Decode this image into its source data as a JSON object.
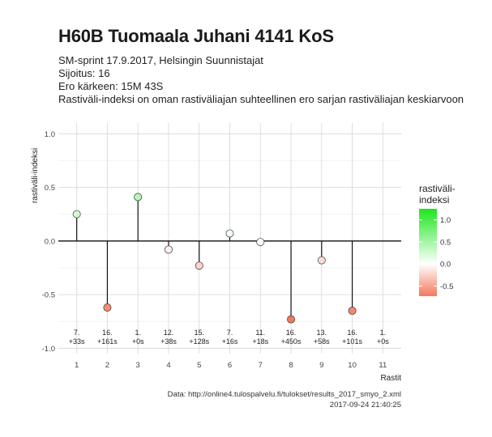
{
  "header": {
    "title": "H60B Tuomaala Juhani 4141 KoS",
    "subtitle_lines": [
      "SM-sprint 17.9.2017, Helsingin Suunnistajat",
      "Sijoitus: 16",
      "Ero kärkeen: 15M 43S",
      "Rastiväli-indeksi on oman rastiväliajan suhteellinen ero sarjan rastiväliajan keskiarvoon"
    ]
  },
  "footer": {
    "source": "Data: http://online4.tulospalvelu.fi/tulokset/results_2017_smyo_2.xml",
    "timestamp": "2017-09-24 21:40:25"
  },
  "chart_data": {
    "type": "scatter",
    "style": "lollipop",
    "xlabel": "Rastit",
    "ylabel": "rastiväli-indeksi",
    "x": [
      1,
      2,
      3,
      4,
      5,
      6,
      7,
      8,
      9,
      10,
      11
    ],
    "y": [
      0.25,
      -0.62,
      0.41,
      -0.08,
      -0.23,
      0.07,
      -0.01,
      -0.73,
      -0.18,
      -0.65,
      null
    ],
    "point_labels": [
      [
        "7.",
        "+33s"
      ],
      [
        "16.",
        "+161s"
      ],
      [
        "1.",
        "+0s"
      ],
      [
        "12.",
        "+38s"
      ],
      [
        "15.",
        "+128s"
      ],
      [
        "7.",
        "+16s"
      ],
      [
        "11.",
        "+18s"
      ],
      [
        "16.",
        "+450s"
      ],
      [
        "13.",
        "+58s"
      ],
      [
        "16.",
        "+101s"
      ],
      [
        "1.",
        "+0s"
      ]
    ],
    "xlim": [
      0.4,
      11.6
    ],
    "ylim": [
      -1.05,
      1.1
    ],
    "y_ticks": [
      -1.0,
      -0.5,
      0.0,
      0.5,
      1.0
    ],
    "y_tick_labels": [
      "-1.0",
      "-0.5",
      "0.0",
      "0.5",
      "1.0"
    ],
    "grid": true,
    "legend": {
      "title_lines": [
        "rastiväli-",
        "indeksi"
      ],
      "placement": "right",
      "ticks": [
        1.0,
        0.5,
        0.0,
        -0.5
      ],
      "tick_labels": [
        "1.0",
        "0.5",
        "0.0",
        "-0.5"
      ],
      "range": [
        -0.73,
        1.25
      ],
      "colors": {
        "low": "#f4785e",
        "mid": "#ffffff",
        "high": "#1ee61e"
      }
    }
  }
}
